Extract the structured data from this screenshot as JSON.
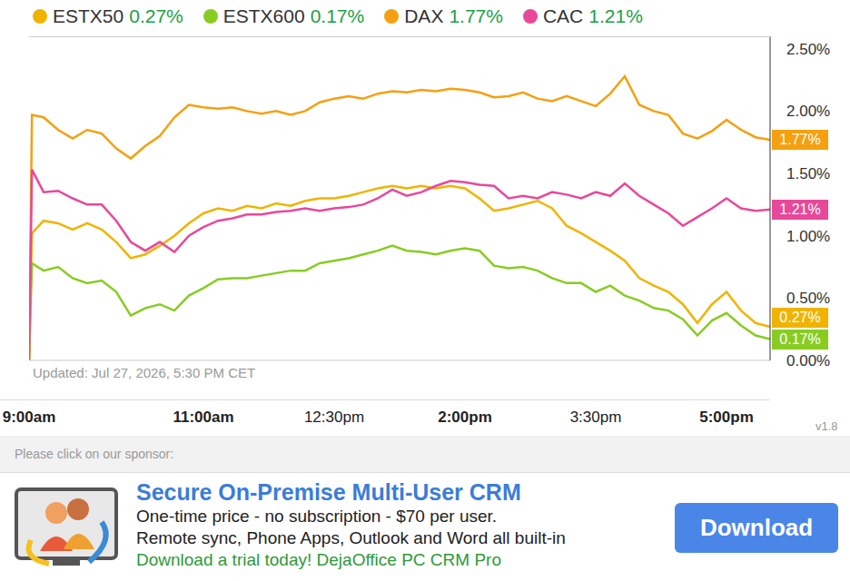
{
  "chart_data": {
    "type": "line",
    "legend": "top",
    "grid": false,
    "annotations": [
      "Updated: Jul 27, 2026, 5:30 PM CET"
    ],
    "x": [
      540,
      542,
      550,
      560,
      570,
      580,
      590,
      600,
      610,
      620,
      630,
      640,
      650,
      660,
      670,
      680,
      690,
      700,
      710,
      720,
      730,
      740,
      750,
      760,
      770,
      780,
      790,
      800,
      810,
      820,
      830,
      840,
      850,
      860,
      870,
      880,
      890,
      900,
      910,
      920,
      930,
      940,
      950,
      960,
      970,
      980,
      990,
      1000,
      1010,
      1020,
      1030,
      1040,
      1050
    ],
    "xlim": [
      540,
      1050
    ],
    "xticks": [
      {
        "value": 540,
        "label": "9:00am"
      },
      {
        "value": 660,
        "label": "11:00am"
      },
      {
        "value": 750,
        "label": "12:30pm"
      },
      {
        "value": 840,
        "label": "2:00pm"
      },
      {
        "value": 930,
        "label": "3:30pm"
      },
      {
        "value": 1020,
        "label": "5:00pm"
      }
    ],
    "ylim": [
      0,
      2.6
    ],
    "yticks": [
      {
        "value": 0,
        "label": "0.00%"
      },
      {
        "value": 0.5,
        "label": "0.50%"
      },
      {
        "value": 1,
        "label": "1.00%"
      },
      {
        "value": 1.5,
        "label": "1.50%"
      },
      {
        "value": 2,
        "label": "2.00%"
      },
      {
        "value": 2.5,
        "label": "2.50%"
      }
    ],
    "series": [
      {
        "name": "ESTX50",
        "color": "#f0b400",
        "values": [
          0,
          1.02,
          1.12,
          1.1,
          1.05,
          1.1,
          1.05,
          0.95,
          0.82,
          0.85,
          0.92,
          1.0,
          1.1,
          1.18,
          1.22,
          1.2,
          1.24,
          1.22,
          1.26,
          1.24,
          1.28,
          1.3,
          1.3,
          1.32,
          1.35,
          1.38,
          1.4,
          1.38,
          1.4,
          1.38,
          1.4,
          1.38,
          1.3,
          1.2,
          1.22,
          1.25,
          1.28,
          1.22,
          1.08,
          1.02,
          0.95,
          0.88,
          0.8,
          0.66,
          0.6,
          0.55,
          0.45,
          0.3,
          0.45,
          0.55,
          0.4,
          0.3,
          0.27
        ],
        "value_labels": [
          null,
          null,
          null,
          null,
          null,
          null,
          null,
          null,
          null,
          null,
          null,
          null,
          null,
          null,
          null,
          null,
          null,
          null,
          null,
          null,
          null,
          null,
          null,
          null,
          null,
          null,
          null,
          null,
          null,
          null,
          null,
          null,
          null,
          null,
          null,
          null,
          null,
          null,
          null,
          null,
          null,
          null,
          null,
          null,
          null,
          null,
          null,
          null,
          null,
          null,
          null,
          null,
          "0.27%"
        ]
      },
      {
        "name": "ESTX600",
        "color": "#88cc22",
        "values": [
          0,
          0.78,
          0.72,
          0.75,
          0.66,
          0.62,
          0.64,
          0.55,
          0.36,
          0.42,
          0.45,
          0.4,
          0.52,
          0.58,
          0.65,
          0.66,
          0.66,
          0.68,
          0.7,
          0.72,
          0.72,
          0.78,
          0.8,
          0.82,
          0.85,
          0.88,
          0.92,
          0.88,
          0.87,
          0.85,
          0.88,
          0.9,
          0.88,
          0.76,
          0.74,
          0.75,
          0.72,
          0.66,
          0.62,
          0.62,
          0.55,
          0.6,
          0.52,
          0.48,
          0.42,
          0.4,
          0.33,
          0.2,
          0.32,
          0.38,
          0.28,
          0.2,
          0.17
        ],
        "value_labels": [
          null,
          null,
          null,
          null,
          null,
          null,
          null,
          null,
          null,
          null,
          null,
          null,
          null,
          null,
          null,
          null,
          null,
          null,
          null,
          null,
          null,
          null,
          null,
          null,
          null,
          null,
          null,
          null,
          null,
          null,
          null,
          null,
          null,
          null,
          null,
          null,
          null,
          null,
          null,
          null,
          null,
          null,
          null,
          null,
          null,
          null,
          null,
          null,
          null,
          null,
          null,
          null,
          "0.17%"
        ]
      },
      {
        "name": "DAX",
        "color": "#f5a010",
        "values": [
          0,
          1.97,
          1.95,
          1.85,
          1.78,
          1.85,
          1.82,
          1.7,
          1.62,
          1.72,
          1.8,
          1.95,
          2.05,
          2.03,
          2.02,
          2.03,
          2.0,
          1.98,
          2.0,
          1.97,
          2.0,
          2.07,
          2.1,
          2.12,
          2.1,
          2.14,
          2.16,
          2.15,
          2.17,
          2.16,
          2.18,
          2.17,
          2.15,
          2.11,
          2.12,
          2.15,
          2.1,
          2.08,
          2.12,
          2.08,
          2.04,
          2.14,
          2.28,
          2.05,
          2.0,
          1.97,
          1.82,
          1.78,
          1.84,
          1.93,
          1.85,
          1.79,
          1.77
        ],
        "value_labels": [
          null,
          null,
          null,
          null,
          null,
          null,
          null,
          null,
          null,
          null,
          null,
          null,
          null,
          null,
          null,
          null,
          null,
          null,
          null,
          null,
          null,
          null,
          null,
          null,
          null,
          null,
          null,
          null,
          null,
          null,
          null,
          null,
          null,
          null,
          null,
          null,
          null,
          null,
          null,
          null,
          null,
          null,
          null,
          null,
          null,
          null,
          null,
          null,
          null,
          null,
          null,
          null,
          "1.77%"
        ]
      },
      {
        "name": "CAC",
        "color": "#e8489a",
        "values": [
          0,
          1.53,
          1.35,
          1.36,
          1.3,
          1.25,
          1.25,
          1.12,
          0.95,
          0.88,
          0.95,
          0.87,
          1.0,
          1.07,
          1.12,
          1.14,
          1.17,
          1.17,
          1.19,
          1.2,
          1.22,
          1.2,
          1.22,
          1.23,
          1.25,
          1.3,
          1.37,
          1.32,
          1.35,
          1.4,
          1.44,
          1.43,
          1.41,
          1.4,
          1.3,
          1.32,
          1.3,
          1.35,
          1.33,
          1.3,
          1.35,
          1.32,
          1.42,
          1.32,
          1.25,
          1.18,
          1.08,
          1.15,
          1.22,
          1.3,
          1.22,
          1.2,
          1.21
        ],
        "value_labels": [
          null,
          null,
          null,
          null,
          null,
          null,
          null,
          null,
          null,
          null,
          null,
          null,
          null,
          null,
          null,
          null,
          null,
          null,
          null,
          null,
          null,
          null,
          null,
          null,
          null,
          null,
          null,
          null,
          null,
          null,
          null,
          null,
          null,
          null,
          null,
          null,
          null,
          null,
          null,
          null,
          null,
          null,
          null,
          null,
          null,
          null,
          null,
          null,
          null,
          null,
          null,
          null,
          "1.21%"
        ]
      }
    ]
  },
  "version": "v1.8",
  "sponsor": {
    "heading": "Please click on our sponsor:",
    "title": "Secure On-Premise Multi-User CRM",
    "lines": [
      "One-time price - no subscription - $70 per user.",
      "Remote sync, Phone Apps, Outlook and Word all built-in"
    ],
    "link": "Download a trial today! DejaOffice PC CRM Pro",
    "button": "Download"
  }
}
